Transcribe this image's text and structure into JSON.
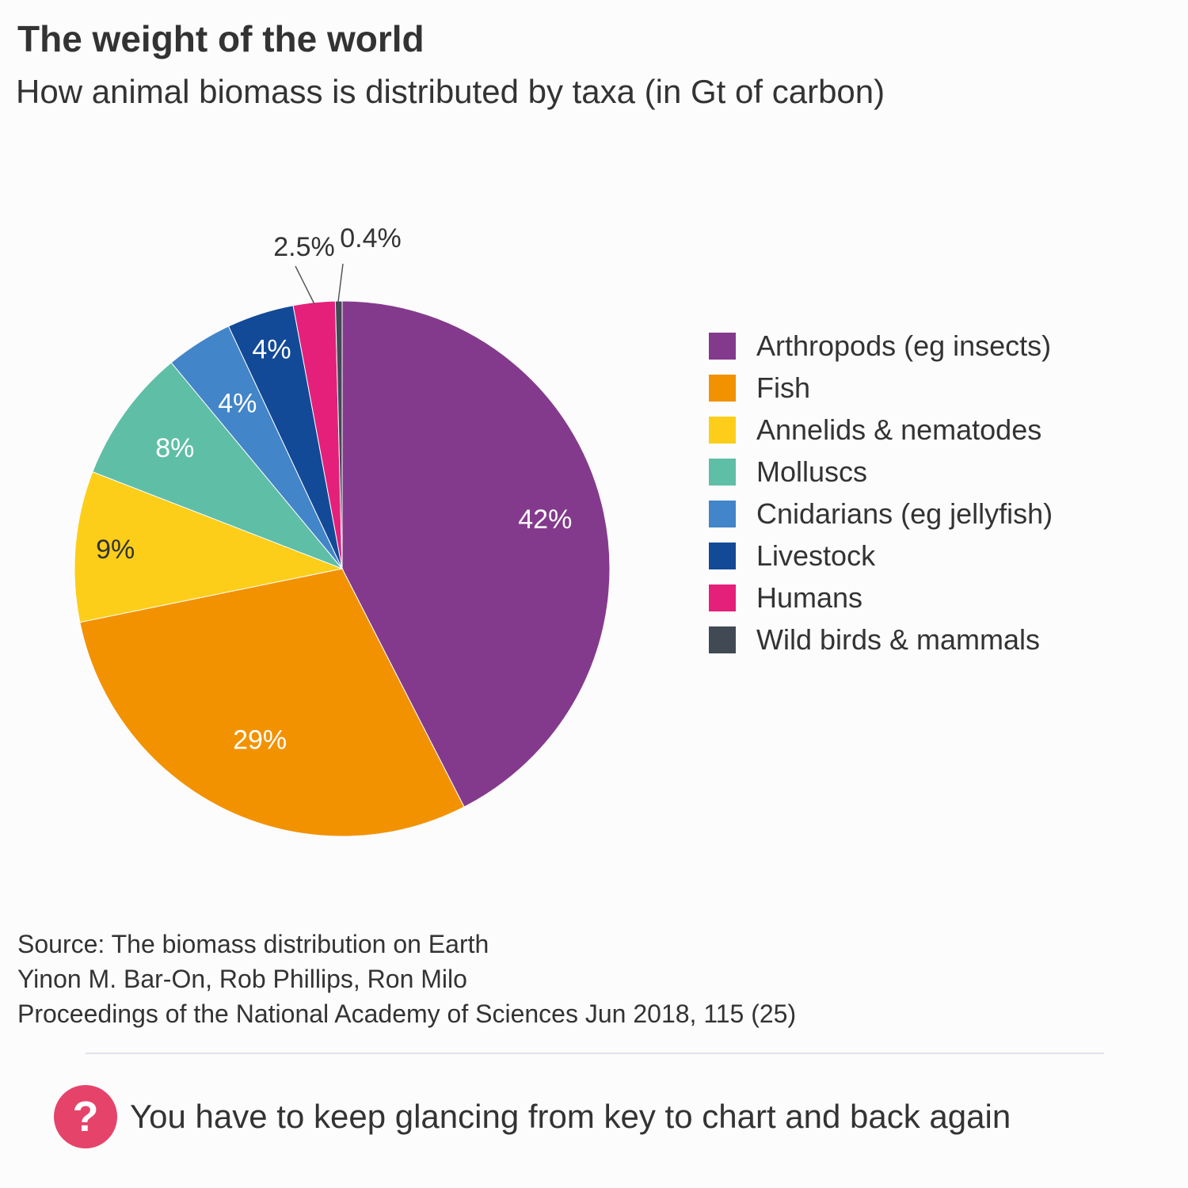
{
  "header": {
    "title": "The weight of the world",
    "subtitle": "How animal biomass is distributed by taxa (in Gt of carbon)"
  },
  "chart_data": {
    "type": "pie",
    "title": "The weight of the world",
    "subtitle": "How animal biomass is distributed by taxa (in Gt of carbon)",
    "legend_position": "right",
    "slices": [
      {
        "label": "Arthropods (eg insects)",
        "value": 42,
        "display": "42%",
        "color": "#843a8c",
        "text_color": "#ffffff"
      },
      {
        "label": "Fish",
        "value": 29,
        "display": "29%",
        "color": "#f29200",
        "text_color": "#ffffff"
      },
      {
        "label": "Annelids & nematodes",
        "value": 9,
        "display": "9%",
        "color": "#fcce19",
        "text_color": "#333333"
      },
      {
        "label": "Molluscs",
        "value": 8,
        "display": "8%",
        "color": "#5fbea6",
        "text_color": "#ffffff"
      },
      {
        "label": "Cnidarians (eg jellyfish)",
        "value": 4,
        "display": "4%",
        "color": "#4285c8",
        "text_color": "#ffffff"
      },
      {
        "label": "Livestock",
        "value": 4,
        "display": "4%",
        "color": "#124a97",
        "text_color": "#ffffff"
      },
      {
        "label": "Humans",
        "value": 2.5,
        "display": "2.5%",
        "color": "#e5207a",
        "text_color": "#333333"
      },
      {
        "label": "Wild birds & mammals",
        "value": 0.4,
        "display": "0.4%",
        "color": "#414a54",
        "text_color": "#333333"
      }
    ]
  },
  "source": {
    "line1": "Source: The biomass distribution on Earth",
    "line2": "Yinon M. Bar-On, Rob Phillips, Ron Milo",
    "line3": "Proceedings of the National Academy of Sciences Jun 2018, 115 (25)"
  },
  "note": {
    "icon_glyph": "?",
    "icon_color": "#e5436a",
    "text": "You have to keep glancing from key to chart and back again"
  }
}
